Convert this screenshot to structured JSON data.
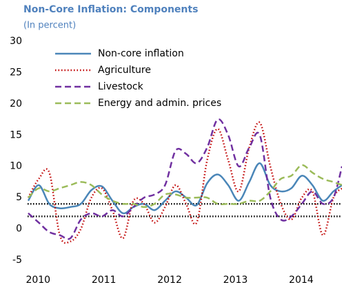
{
  "chart_data": {
    "type": "line",
    "title": "Non-Core Inflation: Components",
    "subtitle": "(In percent)",
    "x": [
      2009.85,
      2010.01,
      2010.17,
      2010.33,
      2010.49,
      2010.65,
      2010.81,
      2010.97,
      2011.13,
      2011.29,
      2011.45,
      2011.61,
      2011.77,
      2011.93,
      2012.09,
      2012.25,
      2012.41,
      2012.57,
      2012.73,
      2012.89,
      2013.05,
      2013.21,
      2013.37,
      2013.53,
      2013.69,
      2013.85,
      2014.01,
      2014.17,
      2014.33,
      2014.49,
      2014.62
    ],
    "series": [
      {
        "name": "Non-core inflation",
        "color": "#4a86b8",
        "style": "solid",
        "values": [
          4.5,
          7,
          4,
          3.3,
          3.5,
          4,
          6.2,
          6.8,
          4.5,
          2.5,
          3.5,
          4,
          3,
          4.5,
          6,
          5,
          3.8,
          7.3,
          8.7,
          7,
          4.5,
          7.5,
          10.5,
          7,
          6,
          6.5,
          8.5,
          7,
          4.5,
          6,
          7
        ]
      },
      {
        "name": "Agriculture",
        "color": "#c00000",
        "style": "dotted",
        "values": [
          5,
          8,
          9,
          -1,
          -2,
          0,
          5,
          6.5,
          3,
          -1.5,
          4.5,
          4,
          1,
          3.5,
          7,
          4,
          1,
          11,
          16,
          11,
          6,
          13,
          17,
          10,
          4,
          1.5,
          5,
          6,
          -1,
          5,
          6.5
        ]
      },
      {
        "name": "Livestock",
        "color": "#7030a0",
        "style": "dashed",
        "values": [
          2.5,
          1,
          -0.5,
          -1,
          -1.5,
          1.5,
          2.5,
          2,
          3,
          2,
          3.5,
          5,
          5.5,
          7,
          12.5,
          12,
          10.5,
          13,
          17.5,
          15,
          10,
          13,
          15,
          5,
          1.5,
          2,
          4,
          6,
          4,
          5,
          10
        ]
      },
      {
        "name": "Energy and admin. prices",
        "color": "#9bbb59",
        "style": "dashed",
        "values": [
          5,
          6.5,
          6,
          6.5,
          7,
          7.5,
          7,
          5.5,
          4.5,
          4,
          4,
          3.5,
          4,
          5.5,
          5.5,
          5,
          5,
          5,
          4,
          4,
          4,
          4.5,
          4.5,
          6,
          8,
          8.5,
          10.2,
          9,
          8,
          7.5,
          7
        ]
      }
    ],
    "hlines": [
      4,
      2
    ],
    "hline_color": "#000000",
    "xlim": [
      2009.84,
      2014.62
    ],
    "xticks": [
      2010,
      2011,
      2012,
      2013,
      2014
    ],
    "ylim": [
      -5,
      30
    ],
    "yticks": [
      -5,
      0,
      5,
      10,
      15,
      20,
      25,
      30
    ],
    "grid": false,
    "legend": "upper-left"
  }
}
